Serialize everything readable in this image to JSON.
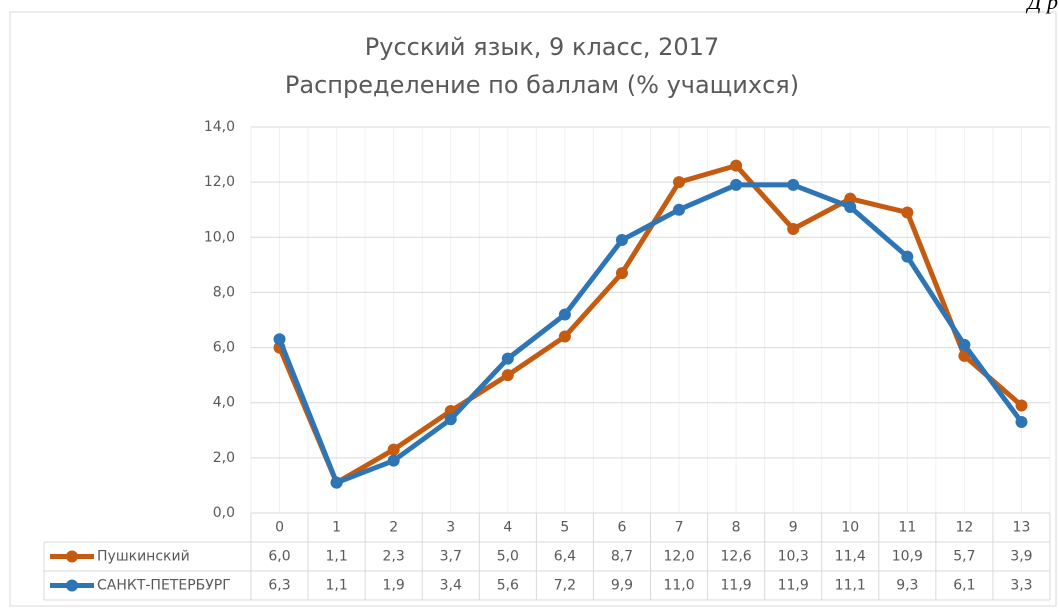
{
  "chart_data": {
    "type": "line",
    "annotation": "Д р",
    "title": "Русский язык, 9 класс, 2017",
    "subtitle": "Распределение по баллам (% учащихся)",
    "categories": [
      "0",
      "1",
      "2",
      "3",
      "4",
      "5",
      "6",
      "7",
      "8",
      "9",
      "10",
      "11",
      "12",
      "13"
    ],
    "series": [
      {
        "name": "Пушкинский",
        "color": "#c55a11",
        "values": [
          6.0,
          1.1,
          2.3,
          3.7,
          5.0,
          6.4,
          8.7,
          12.0,
          12.6,
          10.3,
          11.4,
          10.9,
          5.7,
          3.9
        ],
        "value_labels": [
          "6,0",
          "1,1",
          "2,3",
          "3,7",
          "5,0",
          "6,4",
          "8,7",
          "12,0",
          "12,6",
          "10,3",
          "11,4",
          "10,9",
          "5,7",
          "3,9"
        ]
      },
      {
        "name": "САНКТ-ПЕТЕРБУРГ",
        "color": "#2e75b6",
        "values": [
          6.3,
          1.1,
          1.9,
          3.4,
          5.6,
          7.2,
          9.9,
          11.0,
          11.9,
          11.9,
          11.1,
          9.3,
          6.1,
          3.3
        ],
        "value_labels": [
          "6,3",
          "1,1",
          "1,9",
          "3,4",
          "5,6",
          "7,2",
          "9,9",
          "11,0",
          "11,9",
          "11,9",
          "11,1",
          "9,3",
          "6,1",
          "3,3"
        ]
      }
    ],
    "ylim": [
      0,
      14
    ],
    "yticks": [
      {
        "value": 0,
        "label": "0,0"
      },
      {
        "value": 2,
        "label": "2,0"
      },
      {
        "value": 4,
        "label": "4,0"
      },
      {
        "value": 6,
        "label": "6,0"
      },
      {
        "value": 8,
        "label": "8,0"
      },
      {
        "value": 10,
        "label": "10,0"
      },
      {
        "value": 12,
        "label": "12,0"
      },
      {
        "value": 14,
        "label": "14,0"
      }
    ],
    "grid": true,
    "data_table": true
  }
}
